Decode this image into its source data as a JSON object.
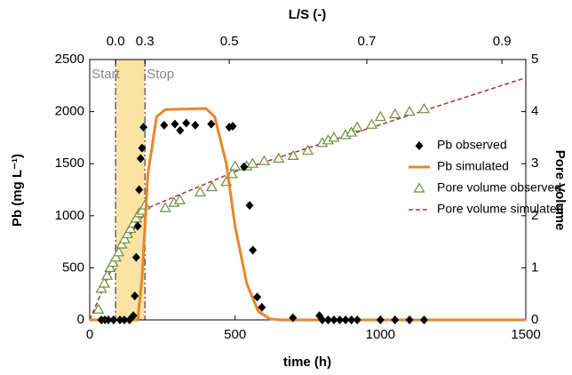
{
  "chart_data": {
    "type": "line",
    "title_top_axis": "L/S (-)",
    "x_label": "time (h)",
    "y_label": "Pb (mg L⁻¹)",
    "y2_label": "Pore Volume",
    "xlim": [
      0,
      1500
    ],
    "xticks": [
      0,
      500,
      1000,
      1500
    ],
    "ylim": [
      0,
      2500
    ],
    "yticks": [
      0,
      500,
      1000,
      1500,
      2000,
      2500
    ],
    "y2lim": [
      0,
      5
    ],
    "y2ticks": [
      0,
      1,
      2,
      3,
      4,
      5
    ],
    "top_ticks": [
      {
        "value": 89,
        "label": "0.0"
      },
      {
        "value": 190,
        "label": "0.3"
      },
      {
        "value": 480,
        "label": "0.5"
      },
      {
        "value": 953,
        "label": "0.7"
      },
      {
        "value": 1418,
        "label": "0.9"
      }
    ],
    "highlight_span": [
      89,
      190
    ],
    "annotations": [
      "Start",
      "Stop"
    ],
    "legend": "right",
    "series": [
      {
        "name": "Pb observed",
        "kind": "scatter",
        "marker": "diamond",
        "color": "#000000",
        "x": [
          40,
          52,
          64,
          82,
          104,
          119,
          137,
          150,
          155,
          160,
          165,
          170,
          175,
          180,
          185,
          256,
          293,
          311,
          332,
          363,
          418,
          480,
          492,
          531,
          550,
          561,
          576,
          592,
          699,
          790,
          800,
          820,
          840,
          860,
          880,
          900,
          920,
          1000,
          1050,
          1100,
          1150
        ],
        "values": [
          0,
          0,
          0,
          0,
          0,
          0,
          0,
          40,
          230,
          600,
          900,
          1250,
          1550,
          1650,
          1850,
          1870,
          1880,
          1820,
          1890,
          1870,
          1880,
          1850,
          1860,
          1470,
          1100,
          670,
          220,
          120,
          20,
          40,
          0,
          0,
          0,
          0,
          0,
          0,
          0,
          0,
          0,
          0,
          0
        ]
      },
      {
        "name": "Pb simulated",
        "kind": "line",
        "color": "#e8862a",
        "width": 3,
        "x": [
          0,
          165,
          180,
          200,
          230,
          260,
          400,
          430,
          470,
          500,
          540,
          580,
          620,
          660,
          1500
        ],
        "values": [
          0,
          0,
          400,
          1400,
          1950,
          2020,
          2030,
          1950,
          1500,
          900,
          350,
          80,
          10,
          0,
          0
        ]
      },
      {
        "name": "Pore volume observed",
        "kind": "scatter",
        "marker": "triangle",
        "axis": "y2",
        "color": "#6b8e3a",
        "x": [
          30,
          40,
          50,
          60,
          70,
          80,
          90,
          100,
          110,
          120,
          130,
          140,
          150,
          160,
          170,
          180,
          190,
          260,
          290,
          310,
          380,
          420,
          470,
          490,
          500,
          540,
          560,
          600,
          650,
          700,
          750,
          800,
          820,
          840,
          880,
          900,
          920,
          970,
          1000,
          1050,
          1100,
          1150
        ],
        "values": [
          0.2,
          0.6,
          0.7,
          0.85,
          1.0,
          1.1,
          1.2,
          1.3,
          1.45,
          1.55,
          1.65,
          1.75,
          1.85,
          1.95,
          2.05,
          2.1,
          2.2,
          2.15,
          2.25,
          2.3,
          2.45,
          2.55,
          2.65,
          2.8,
          2.95,
          2.95,
          3.0,
          3.05,
          3.1,
          3.15,
          3.25,
          3.4,
          3.45,
          3.5,
          3.55,
          3.6,
          3.7,
          3.75,
          3.9,
          3.95,
          4.0,
          4.05
        ]
      },
      {
        "name": "Pore volume simulated",
        "kind": "line",
        "dash": "5,3",
        "axis": "y2",
        "color": "#b03030",
        "width": 1.5,
        "x": [
          0,
          100,
          200,
          500,
          1000,
          1500
        ],
        "values": [
          0,
          1.3,
          2.15,
          2.85,
          3.75,
          4.65
        ]
      }
    ]
  }
}
